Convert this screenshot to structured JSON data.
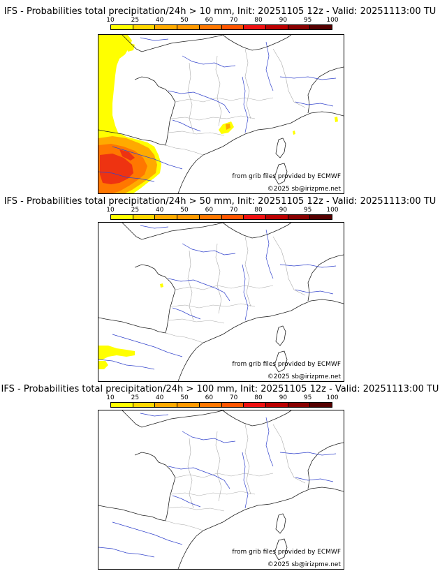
{
  "colorbar": {
    "labels": [
      "10",
      "25",
      "40",
      "50",
      "60",
      "70",
      "80",
      "90",
      "95",
      "100"
    ],
    "colors": [
      "#ffff00",
      "#ffd700",
      "#ffaa00",
      "#ff9900",
      "#ff7700",
      "#ff5500",
      "#ee1111",
      "#bb0000",
      "#880000",
      "#550000"
    ]
  },
  "panels": [
    {
      "title": "IFS - Probabilities total precipitation/24h > 10 mm, Init: 20251105 12z - Valid: 20251113:00 TU",
      "credit_grib": "from grib files provided by ECMWF",
      "credit_copy": "©2025 sb@irizpme.net"
    },
    {
      "title": "IFS - Probabilities total precipitation/24h > 50 mm, Init: 20251105 12z - Valid: 20251113:00 TU",
      "credit_grib": "from grib files provided by ECMWF",
      "credit_copy": "©2025 sb@irizpme.net"
    },
    {
      "title": "IFS - Probabilities total precipitation/24h > 100 mm, Init: 20251105 12z - Valid: 20251113:00 TU",
      "credit_grib": "from grib files provided by ECMWF",
      "credit_copy": "©2025 sb@irizpme.net"
    }
  ]
}
